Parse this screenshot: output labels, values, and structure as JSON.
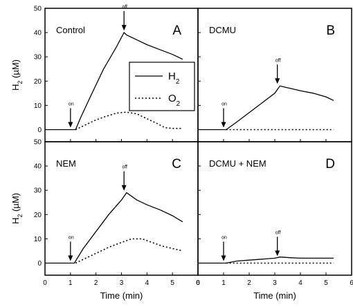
{
  "chart_data": [
    {
      "type": "line",
      "panel_letter": "A",
      "condition": "Control",
      "xlabel": "",
      "ylabel": "H2 (μM)",
      "xlim": [
        0,
        6
      ],
      "ylim": [
        -5,
        50
      ],
      "x_ticks": [
        0,
        1,
        2,
        3,
        4,
        5,
        6
      ],
      "y_ticks": [
        0,
        10,
        20,
        30,
        40,
        50
      ],
      "legend": {
        "placement": "center-right",
        "entries": [
          {
            "label": "H2",
            "base": "H",
            "sub": "2",
            "style": "solid"
          },
          {
            "label": "O2",
            "base": "O",
            "sub": "2",
            "style": "dotted"
          }
        ]
      },
      "annotations": [
        {
          "text": "on",
          "x": 1.0,
          "y": 0
        },
        {
          "text": "off",
          "x": 3.1,
          "y": 40
        }
      ],
      "series": [
        {
          "name": "H2",
          "style": "solid",
          "x": [
            0,
            1.2,
            1.4,
            1.8,
            2.3,
            2.8,
            3.1,
            3.2,
            3.6,
            4.0,
            4.5,
            5.0,
            5.4
          ],
          "values": [
            0,
            0,
            5,
            14,
            25,
            34,
            40,
            39,
            37,
            35,
            33,
            31,
            29
          ]
        },
        {
          "name": "O2",
          "style": "dotted",
          "x": [
            1.2,
            1.6,
            2.0,
            2.4,
            2.8,
            3.2,
            3.6,
            4.0,
            4.4,
            4.7,
            5.0,
            5.4
          ],
          "values": [
            0,
            2,
            4,
            5.5,
            6.8,
            7.2,
            6.5,
            4.5,
            2.5,
            0.8,
            0.5,
            0.5
          ]
        }
      ]
    },
    {
      "type": "line",
      "panel_letter": "B",
      "condition": "DCMU",
      "xlabel": "",
      "ylabel": "",
      "xlim": [
        0,
        6
      ],
      "ylim": [
        -5,
        50
      ],
      "x_ticks": [
        0,
        1,
        2,
        3,
        4,
        5,
        6
      ],
      "y_ticks": [
        0,
        10,
        20,
        30,
        40,
        50
      ],
      "annotations": [
        {
          "text": "on",
          "x": 1.0,
          "y": 0
        },
        {
          "text": "off",
          "x": 3.1,
          "y": 18
        }
      ],
      "series": [
        {
          "name": "H2",
          "style": "solid",
          "x": [
            0,
            1.1,
            1.5,
            2.0,
            2.5,
            3.0,
            3.2,
            3.6,
            4.0,
            4.5,
            5.0,
            5.3
          ],
          "values": [
            0,
            0,
            3,
            7,
            11,
            15,
            18,
            17,
            16,
            15,
            13.5,
            12
          ]
        },
        {
          "name": "O2",
          "style": "dotted",
          "x": [
            1.1,
            5.3
          ],
          "values": [
            0,
            0
          ]
        }
      ]
    },
    {
      "type": "line",
      "panel_letter": "C",
      "condition": "NEM",
      "xlabel": "Time (min)",
      "ylabel": "H2 (μM)",
      "xlim": [
        0,
        6
      ],
      "ylim": [
        -5,
        50
      ],
      "x_ticks": [
        0,
        1,
        2,
        3,
        4,
        5,
        6
      ],
      "y_ticks": [
        0,
        10,
        20,
        30,
        40,
        50
      ],
      "annotations": [
        {
          "text": "on",
          "x": 1.0,
          "y": 0
        },
        {
          "text": "off",
          "x": 3.1,
          "y": 29
        }
      ],
      "series": [
        {
          "name": "H2",
          "style": "solid",
          "x": [
            0,
            1.15,
            1.5,
            2.0,
            2.5,
            3.0,
            3.2,
            3.6,
            4.0,
            4.5,
            5.0,
            5.4
          ],
          "values": [
            0,
            0,
            6,
            13,
            20,
            26,
            29,
            26,
            24,
            22,
            19.5,
            17
          ]
        },
        {
          "name": "O2",
          "style": "dotted",
          "x": [
            1.2,
            1.6,
            2.0,
            2.5,
            3.0,
            3.4,
            3.8,
            4.2,
            4.6,
            5.0,
            5.4
          ],
          "values": [
            0,
            2,
            4,
            6.5,
            8.5,
            10,
            10,
            8.5,
            7,
            6,
            5
          ]
        }
      ]
    },
    {
      "type": "line",
      "panel_letter": "D",
      "condition": "DCMU + NEM",
      "xlabel": "Time (min)",
      "ylabel": "",
      "xlim": [
        0,
        6
      ],
      "ylim": [
        -5,
        50
      ],
      "x_ticks": [
        0,
        1,
        2,
        3,
        4,
        5,
        6
      ],
      "y_ticks": [
        0,
        10,
        20,
        30,
        40,
        50
      ],
      "annotations": [
        {
          "text": "on",
          "x": 1.0,
          "y": 0
        },
        {
          "text": "off",
          "x": 3.1,
          "y": 2
        }
      ],
      "series": [
        {
          "name": "H2",
          "style": "solid",
          "x": [
            0,
            1.1,
            1.5,
            2.0,
            2.5,
            3.0,
            3.2,
            3.6,
            4.0,
            4.5,
            5.0,
            5.3
          ],
          "values": [
            0,
            0,
            0.8,
            1.2,
            1.6,
            2.0,
            2.5,
            2.2,
            2.0,
            2.0,
            2.0,
            2.0
          ]
        },
        {
          "name": "O2",
          "style": "dotted",
          "x": [
            1.1,
            5.3
          ],
          "values": [
            0,
            0
          ]
        }
      ]
    }
  ]
}
